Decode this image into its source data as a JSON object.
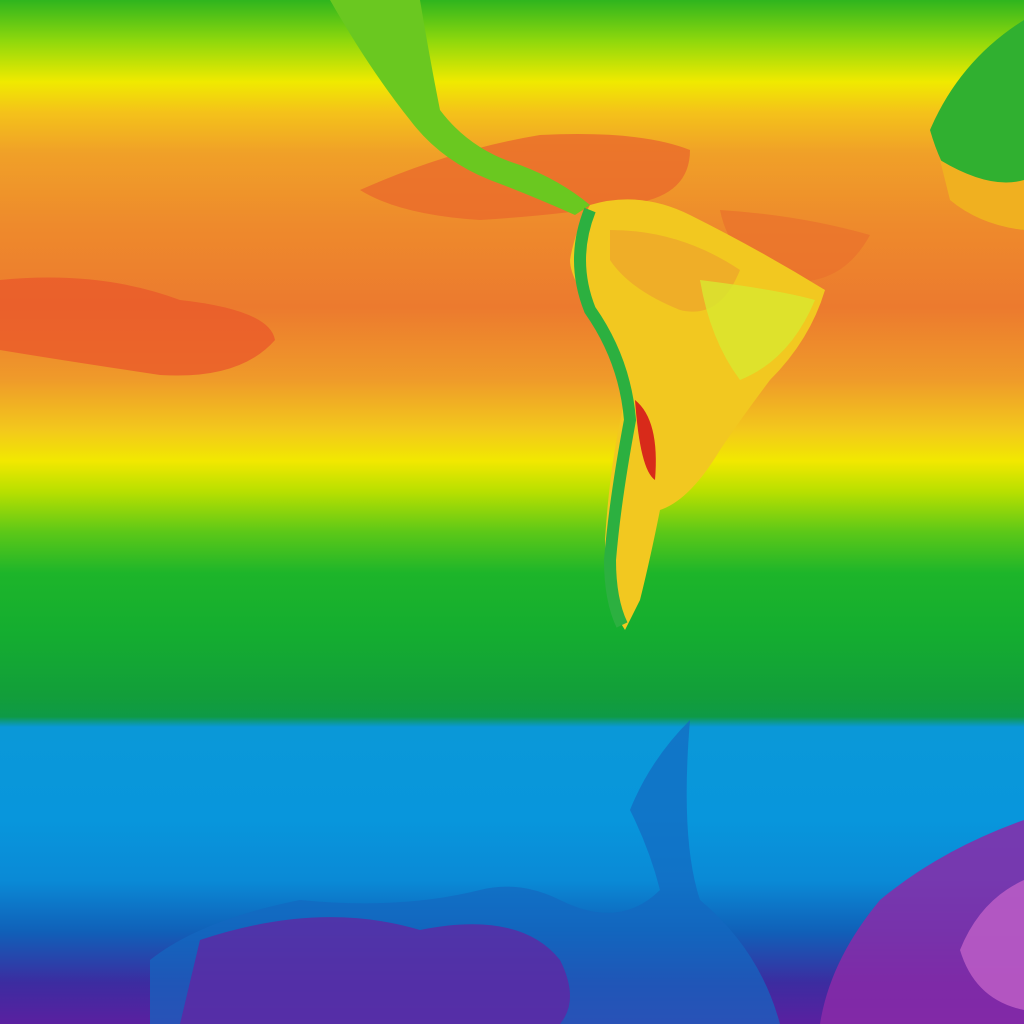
{
  "map": {
    "kind": "temperature-raster",
    "colors": {
      "cold_extreme": "#8a2aa8",
      "cold": "#0a96dc",
      "cool": "#14ad30",
      "mild": "#f2e800",
      "warm": "#ee8a2c",
      "hot": "#e8402a"
    }
  }
}
